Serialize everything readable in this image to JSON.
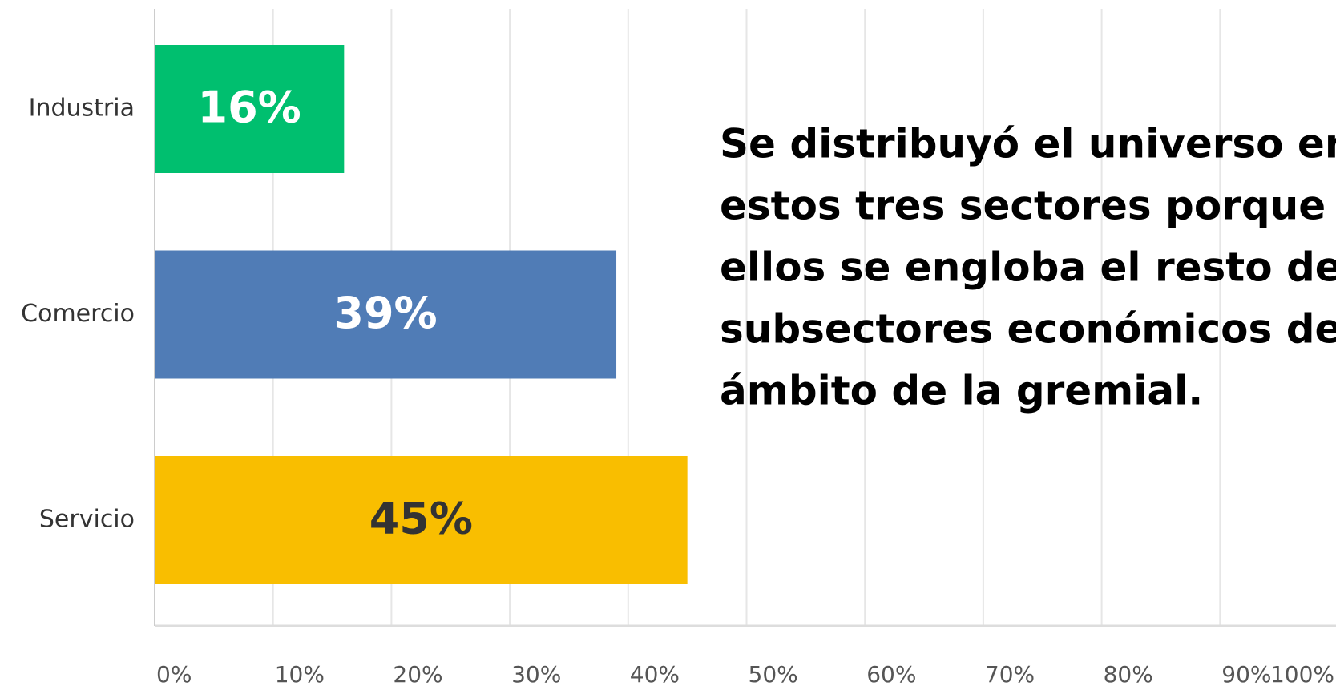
{
  "chart_data": {
    "type": "bar",
    "orientation": "horizontal",
    "categories": [
      "Industria",
      "Comercio",
      "Servicio"
    ],
    "values": [
      16,
      39,
      45
    ],
    "value_labels": [
      "16%",
      "39%",
      "45%"
    ],
    "colors": [
      "#00bf6f",
      "#507cb6",
      "#f9be00"
    ],
    "label_colors": [
      "#ffffff",
      "#ffffff",
      "#333333"
    ],
    "xlim": [
      0,
      100
    ],
    "xticks": [
      {
        "value": 0,
        "label": "0%"
      },
      {
        "value": 10,
        "label": "10%"
      },
      {
        "value": 20,
        "label": "20%"
      },
      {
        "value": 30,
        "label": "30%"
      },
      {
        "value": 40,
        "label": "40%"
      },
      {
        "value": 50,
        "label": "50%"
      },
      {
        "value": 60,
        "label": "60%"
      },
      {
        "value": 70,
        "label": "70%"
      },
      {
        "value": 80,
        "label": "80%"
      },
      {
        "value": 90,
        "label": "90%"
      },
      {
        "value": 100,
        "label": "100%"
      }
    ],
    "grid": true,
    "annotation": [
      "Se distribuyó el universo en",
      "estos tres sectores porque en",
      "ellos se engloba el resto de",
      "subsectores económicos del",
      "ámbito de la gremial."
    ]
  }
}
